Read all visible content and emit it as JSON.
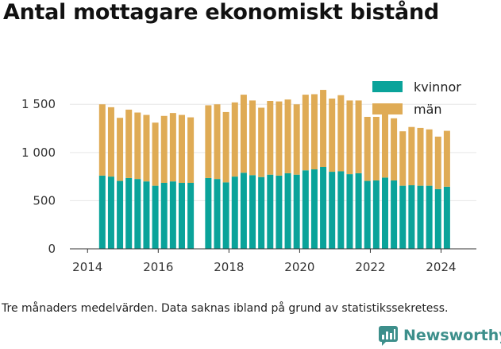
{
  "title": "Antal mottagare ekonomiskt bistånd",
  "footnote": "Tre månaders medelvärden. Data saknas ibland på grund av statistikssekretess.",
  "brand": {
    "name": "Newsworthy",
    "icon": "newsworthy-logo-icon"
  },
  "colors": {
    "kvinnor": "#0aa39a",
    "man": "#dfab55",
    "grid": "#e6e6e6"
  },
  "chart_data": {
    "type": "bar",
    "stacked": true,
    "x_ticks": [
      "2014",
      "2016",
      "2018",
      "2020",
      "2022",
      "2024"
    ],
    "y_ticks": [
      "0",
      "500",
      "1 000",
      "1 500"
    ],
    "ylim": [
      0,
      1700
    ],
    "grid": "horizontal",
    "legend_position": "top-right",
    "periods": [
      {
        "x": "2014-06",
        "kvinnor": 760,
        "man": 740
      },
      {
        "x": "2014-09",
        "kvinnor": 750,
        "man": 720
      },
      {
        "x": "2014-12",
        "kvinnor": 705,
        "man": 655
      },
      {
        "x": "2015-03",
        "kvinnor": 735,
        "man": 710
      },
      {
        "x": "2015-06",
        "kvinnor": 725,
        "man": 690
      },
      {
        "x": "2015-09",
        "kvinnor": 700,
        "man": 690
      },
      {
        "x": "2015-12",
        "kvinnor": 655,
        "man": 655
      },
      {
        "x": "2016-03",
        "kvinnor": 685,
        "man": 695
      },
      {
        "x": "2016-06",
        "kvinnor": 700,
        "man": 710
      },
      {
        "x": "2016-09",
        "kvinnor": 685,
        "man": 705
      },
      {
        "x": "2016-12",
        "kvinnor": 685,
        "man": 680
      },
      {
        "x": "2017-03",
        "kvinnor": null,
        "man": null
      },
      {
        "x": "2017-06",
        "kvinnor": 735,
        "man": 755
      },
      {
        "x": "2017-09",
        "kvinnor": 725,
        "man": 775
      },
      {
        "x": "2017-12",
        "kvinnor": 690,
        "man": 730
      },
      {
        "x": "2018-03",
        "kvinnor": 750,
        "man": 770
      },
      {
        "x": "2018-06",
        "kvinnor": 790,
        "man": 810
      },
      {
        "x": "2018-09",
        "kvinnor": 765,
        "man": 775
      },
      {
        "x": "2018-12",
        "kvinnor": 745,
        "man": 720
      },
      {
        "x": "2019-03",
        "kvinnor": 770,
        "man": 765
      },
      {
        "x": "2019-06",
        "kvinnor": 760,
        "man": 770
      },
      {
        "x": "2019-09",
        "kvinnor": 785,
        "man": 765
      },
      {
        "x": "2019-12",
        "kvinnor": 770,
        "man": 730
      },
      {
        "x": "2020-03",
        "kvinnor": 815,
        "man": 785
      },
      {
        "x": "2020-06",
        "kvinnor": 825,
        "man": 780
      },
      {
        "x": "2020-09",
        "kvinnor": 850,
        "man": 800
      },
      {
        "x": "2020-12",
        "kvinnor": 800,
        "man": 760
      },
      {
        "x": "2021-03",
        "kvinnor": 805,
        "man": 790
      },
      {
        "x": "2021-06",
        "kvinnor": 775,
        "man": 765
      },
      {
        "x": "2021-09",
        "kvinnor": 785,
        "man": 755
      },
      {
        "x": "2021-12",
        "kvinnor": 705,
        "man": 665
      },
      {
        "x": "2022-03",
        "kvinnor": 710,
        "man": 660
      },
      {
        "x": "2022-06",
        "kvinnor": 740,
        "man": 670
      },
      {
        "x": "2022-09",
        "kvinnor": 710,
        "man": 645
      },
      {
        "x": "2022-12",
        "kvinnor": 655,
        "man": 565
      },
      {
        "x": "2023-03",
        "kvinnor": 660,
        "man": 605
      },
      {
        "x": "2023-06",
        "kvinnor": 655,
        "man": 600
      },
      {
        "x": "2023-09",
        "kvinnor": 655,
        "man": 585
      },
      {
        "x": "2023-12",
        "kvinnor": 620,
        "man": 545
      },
      {
        "x": "2024-03",
        "kvinnor": 645,
        "man": 580
      }
    ],
    "series": [
      {
        "name": "kvinnor",
        "key": "kvinnor"
      },
      {
        "name": "män",
        "key": "man"
      }
    ]
  }
}
